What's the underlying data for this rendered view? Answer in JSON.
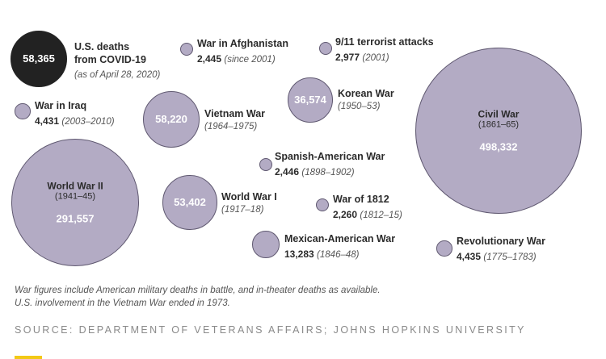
{
  "colors": {
    "bubble_fill": "#b3abc4",
    "bubble_stroke": "#5f5870",
    "highlight_fill": "#222222",
    "accent": "#f2c916"
  },
  "chart_data": {
    "type": "bubble",
    "unit": "U.S. deaths",
    "items": [
      {
        "id": "covid",
        "name": "U.S. deaths from COVID-19",
        "name_lines": [
          "U.S. deaths",
          "from COVID-19"
        ],
        "value": 58365,
        "value_label": "58,365",
        "years": "(as of April 28, 2020)",
        "highlight": true
      },
      {
        "id": "afghanistan",
        "name": "War in Afghanistan",
        "value": 2445,
        "value_label": "2,445",
        "years": "(since 2001)"
      },
      {
        "id": "nine-eleven",
        "name": "9/11 terrorist attacks",
        "value": 2977,
        "value_label": "2,977",
        "years": "(2001)"
      },
      {
        "id": "korean",
        "name": "Korean War",
        "value": 36574,
        "value_label": "36,574",
        "years": "(1950–53)"
      },
      {
        "id": "civil",
        "name": "Civil War",
        "value": 498332,
        "value_label": "498,332",
        "years": "(1861–65)"
      },
      {
        "id": "iraq",
        "name": "War in Iraq",
        "value": 4431,
        "value_label": "4,431",
        "years": "(2003–2010)"
      },
      {
        "id": "vietnam",
        "name": "Vietnam War",
        "value": 58220,
        "value_label": "58,220",
        "years": "(1964–1975)"
      },
      {
        "id": "spanish-american",
        "name": "Spanish-American War",
        "value": 2446,
        "value_label": "2,446",
        "years": "(1898–1902)"
      },
      {
        "id": "ww2",
        "name": "World War II",
        "value": 291557,
        "value_label": "291,557",
        "years": "(1941–45)"
      },
      {
        "id": "ww1",
        "name": "World War I",
        "value": 53402,
        "value_label": "53,402",
        "years": "(1917–18)"
      },
      {
        "id": "war-1812",
        "name": "War of 1812",
        "value": 2260,
        "value_label": "2,260",
        "years": "(1812–15)"
      },
      {
        "id": "mexican-american",
        "name": "Mexican-American War",
        "value": 13283,
        "value_label": "13,283",
        "years": "(1846–48)"
      },
      {
        "id": "revolutionary",
        "name": "Revolutionary War",
        "value": 4435,
        "value_label": "4,435",
        "years": "(1775–1783)"
      }
    ]
  },
  "footnote": {
    "line1": "War figures include American military deaths in battle, and in-theater deaths as available.",
    "line2": "U.S. involvement in the Vietnam War ended in 1973."
  },
  "source": "SOURCE: DEPARTMENT OF VETERANS AFFAIRS; JOHNS HOPKINS UNIVERSITY"
}
